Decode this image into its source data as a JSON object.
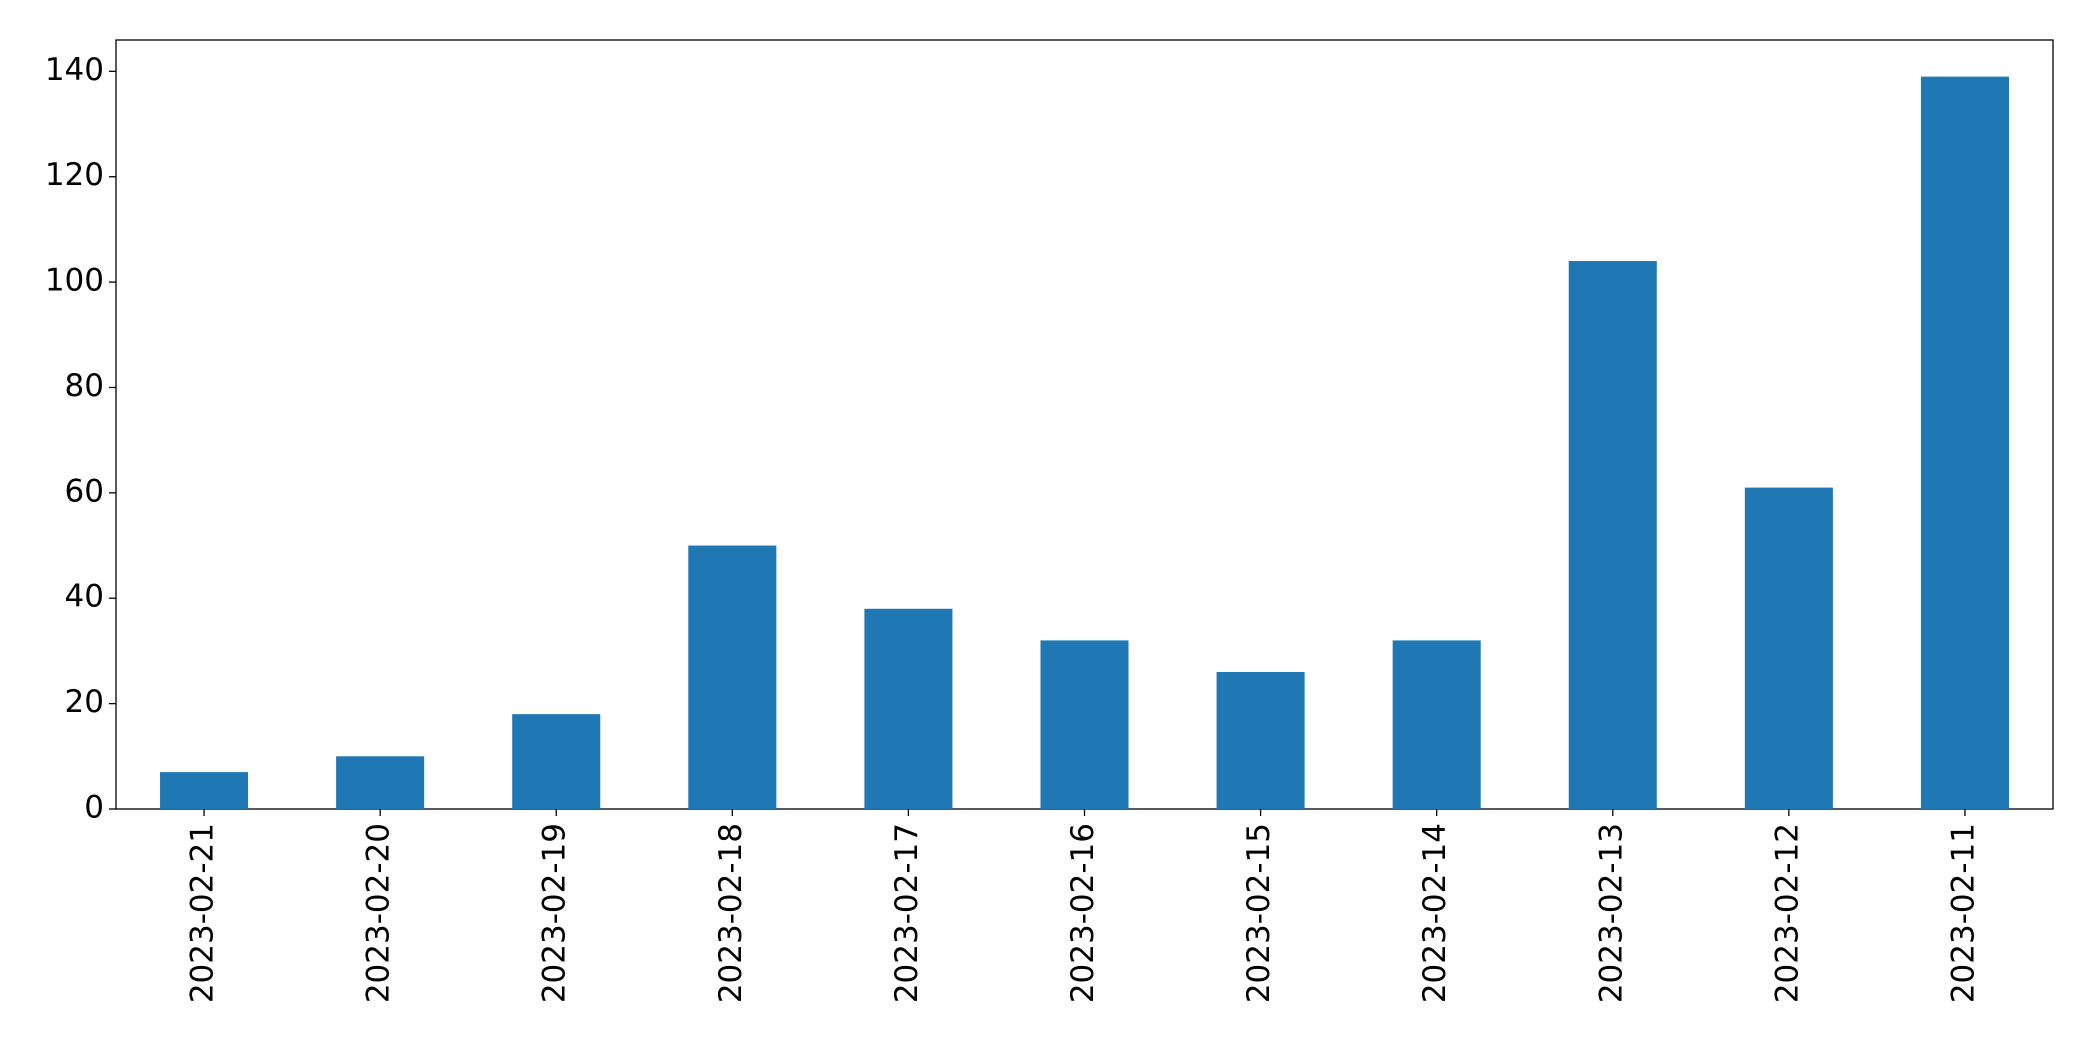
{
  "chart_data": {
    "type": "bar",
    "categories": [
      "2023-02-21",
      "2023-02-20",
      "2023-02-19",
      "2023-02-18",
      "2023-02-17",
      "2023-02-16",
      "2023-02-15",
      "2023-02-14",
      "2023-02-13",
      "2023-02-12",
      "2023-02-11"
    ],
    "values": [
      7,
      10,
      18,
      50,
      38,
      32,
      26,
      32,
      104,
      61,
      139
    ],
    "color": "#1f77b4",
    "ylim": [
      0,
      145.95
    ],
    "yticks": [
      0,
      20,
      40,
      60,
      80,
      100,
      120,
      140
    ],
    "grid": false
  }
}
